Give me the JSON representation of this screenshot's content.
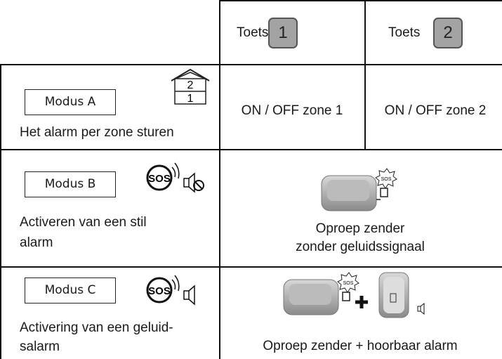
{
  "header": {
    "columns": [
      {
        "label": "Toets",
        "key": "1"
      },
      {
        "label": "Toets",
        "key": "2"
      }
    ]
  },
  "rows": [
    {
      "mode": "Modus A",
      "icon": [
        "2",
        "1"
      ],
      "description": [
        "Het alarm per zone sturen"
      ],
      "cells": [
        "ON / OFF zone 1",
        "ON / OFF zone 2"
      ]
    },
    {
      "mode": "Modus B",
      "icon": "SOS",
      "description": [
        "Activeren van een stil",
        "alarm"
      ],
      "device_badge": "SOS",
      "merged": [
        "Oproep zender",
        "zonder geluidssignaal"
      ]
    },
    {
      "mode": "Modus C",
      "icon": "SOS",
      "description": [
        "Activering van een geluid-",
        "salarm"
      ],
      "device_badge": "SOS",
      "merged": [
        "Oproep zender + hoorbaar alarm"
      ]
    }
  ]
}
